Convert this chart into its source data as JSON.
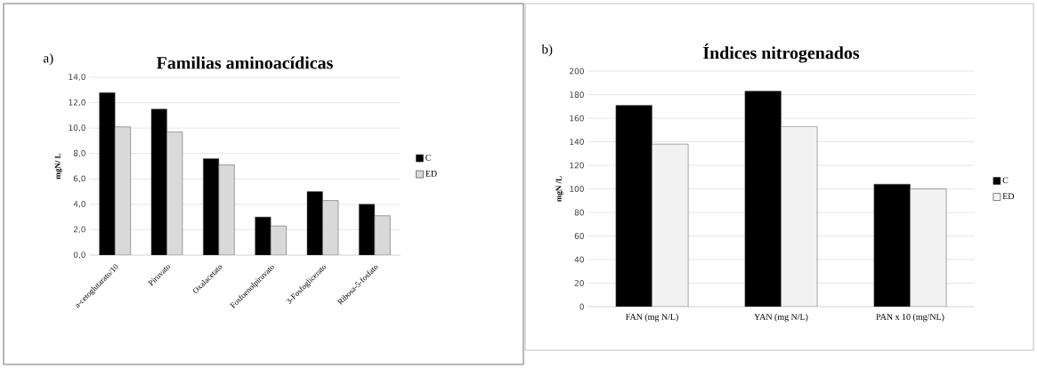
{
  "chart_data": [
    {
      "type": "bar",
      "title": "Familias aminoacídicas",
      "ylabel": "mgN/ L",
      "annotations": [
        "a)"
      ],
      "categories": [
        "a-cetoglutarato/10",
        "Piruvato",
        "Oxalacetato",
        "Fosfoenolpiruvato",
        "3-Fosfoglicerato",
        "Ribosa-5-fosfato"
      ],
      "series": [
        {
          "name": "C",
          "color": "#000000",
          "values": [
            12.8,
            11.5,
            7.6,
            3.0,
            5.0,
            4.0
          ]
        },
        {
          "name": "ED",
          "color": "#d9d9d9",
          "values": [
            10.1,
            9.7,
            7.1,
            2.3,
            4.3,
            3.1
          ]
        }
      ],
      "ylim": [
        0,
        14
      ],
      "yticks": [
        {
          "value": 0,
          "label": "0,0"
        },
        {
          "value": 2,
          "label": "2,0"
        },
        {
          "value": 4,
          "label": "4,0"
        },
        {
          "value": 6,
          "label": "6,0"
        },
        {
          "value": 8,
          "label": "8,0"
        },
        {
          "value": 10,
          "label": "10,0"
        },
        {
          "value": 12,
          "label": "12,0"
        },
        {
          "value": 14,
          "label": "14,0"
        }
      ],
      "grid": "y",
      "legend": "right"
    },
    {
      "type": "bar",
      "title": "Índices nitrogenados",
      "ylabel": "mgN /L",
      "annotations": [
        "b)"
      ],
      "categories": [
        "FAN (mg N/L)",
        "YAN (mg N/L)",
        "PAN x 10 (mg/NL)"
      ],
      "series": [
        {
          "name": "C",
          "color": "#000000",
          "values": [
            171,
            183,
            104
          ]
        },
        {
          "name": "ED",
          "color": "#f2f2f2",
          "values": [
            138,
            153,
            100
          ]
        }
      ],
      "ylim": [
        0,
        200
      ],
      "yticks": [
        0,
        20,
        40,
        60,
        80,
        100,
        120,
        140,
        160,
        180,
        200
      ],
      "grid": "y",
      "legend": "right"
    }
  ]
}
